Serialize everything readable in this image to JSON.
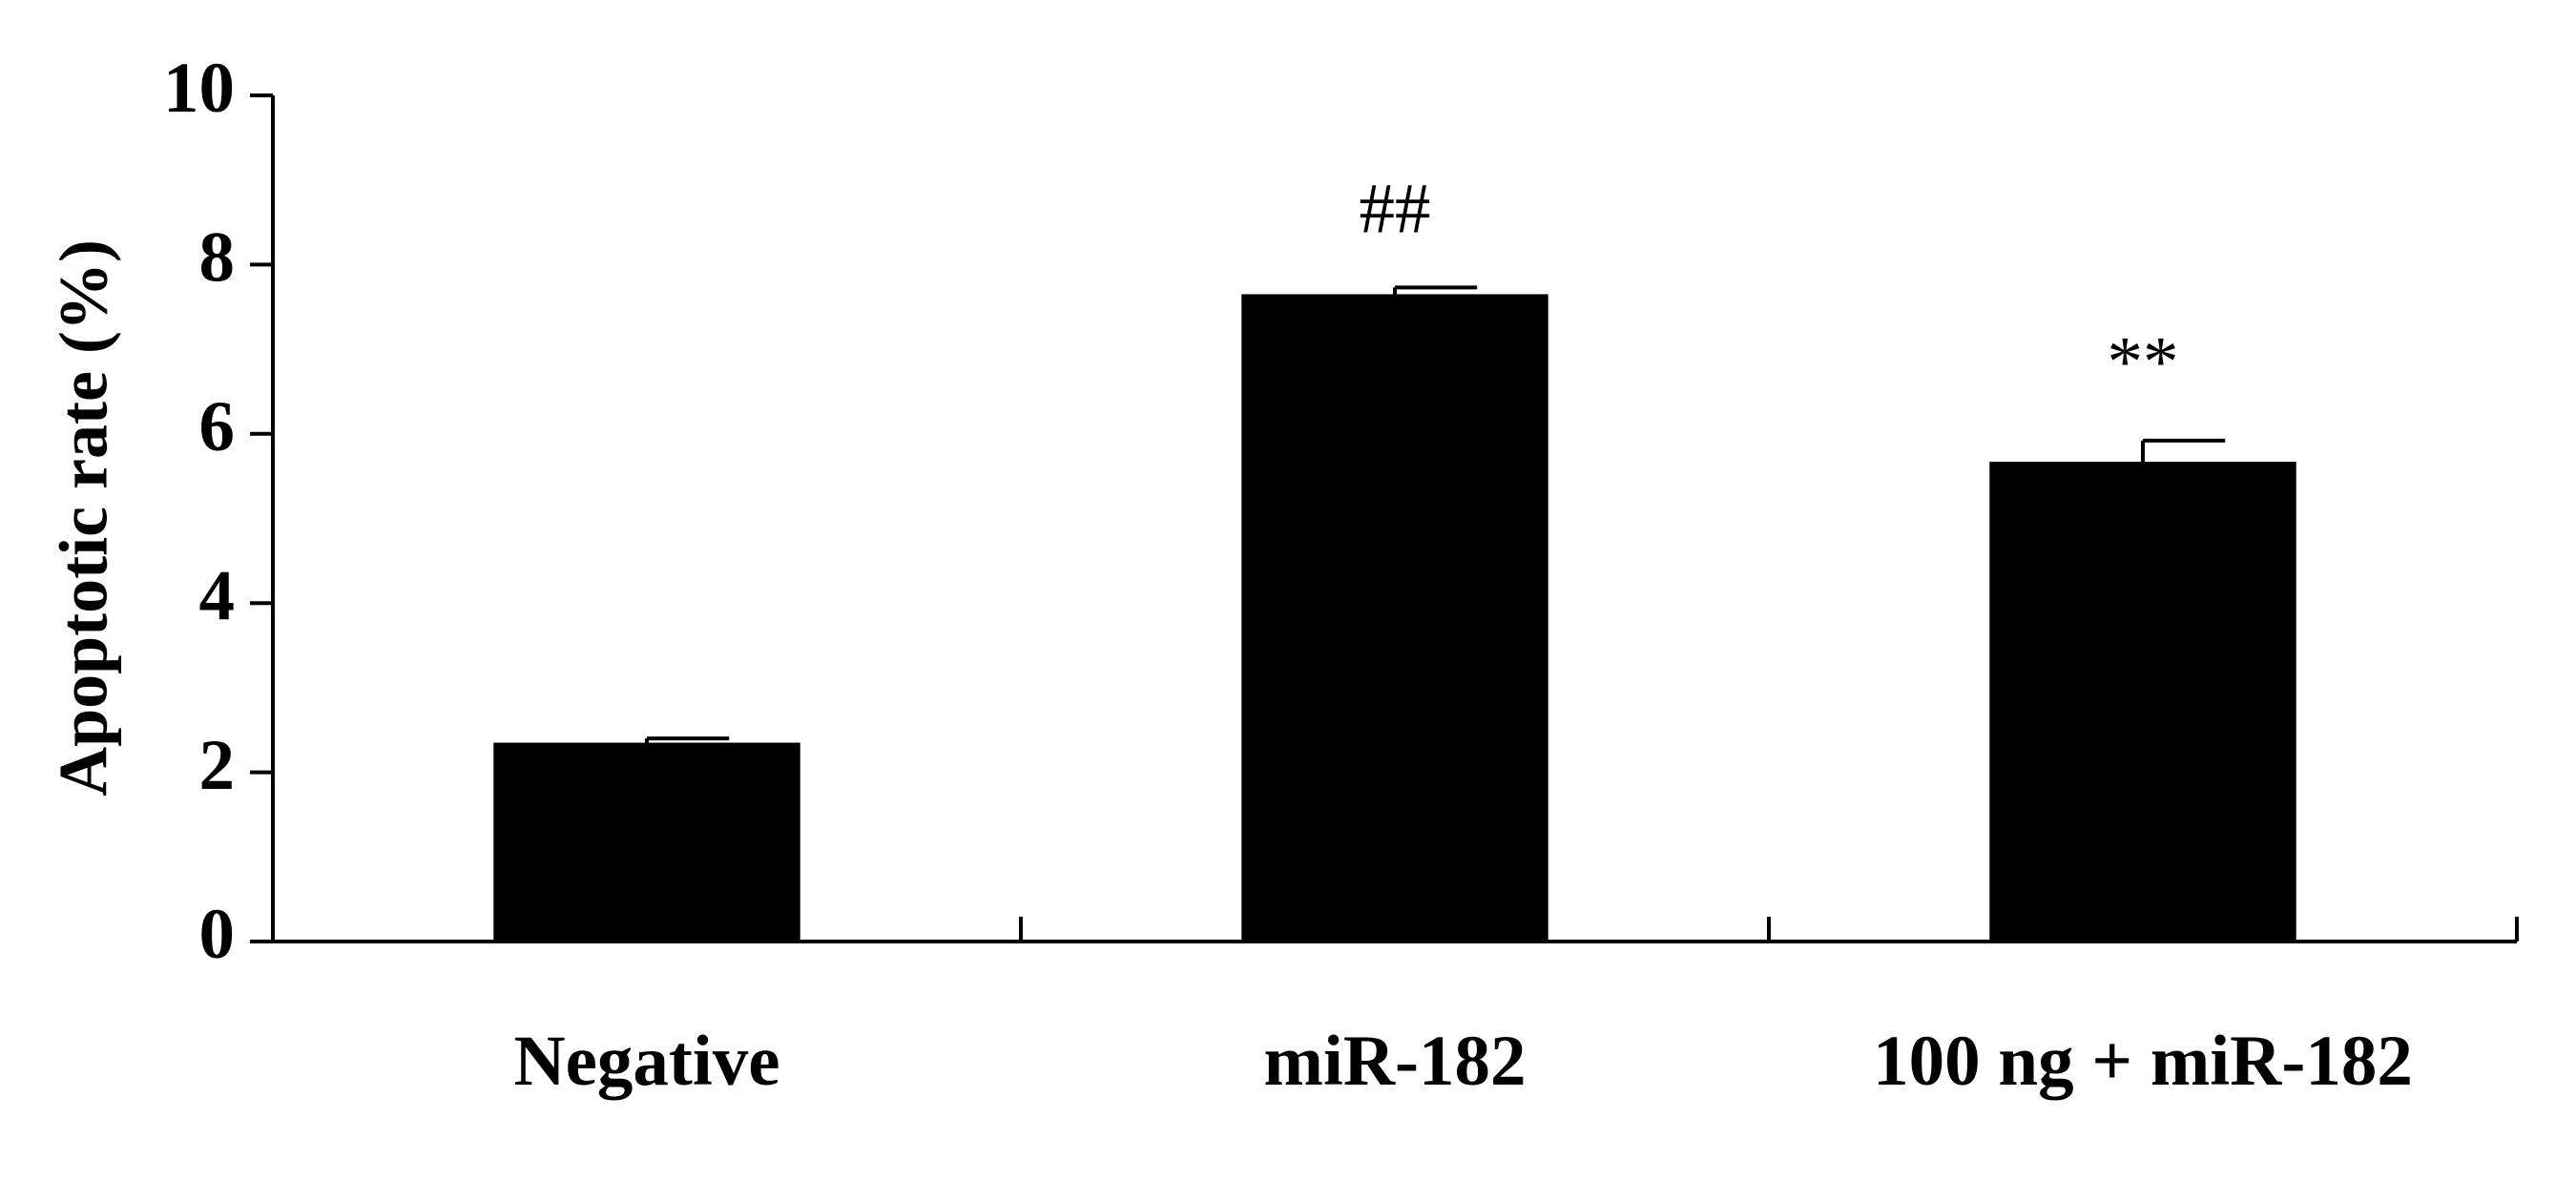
{
  "chart_data": {
    "type": "bar",
    "ylabel": "Apoptotic rate (%)",
    "categories": [
      "Negative",
      "miR-182",
      "100 ng + miR-182"
    ],
    "values": [
      2.35,
      7.65,
      5.67
    ],
    "errors": [
      0.05,
      0.08,
      0.25
    ],
    "annotations": [
      null,
      "##",
      "**"
    ],
    "color": "#000000",
    "ylim": [
      0,
      10
    ],
    "yticks": [
      0,
      2,
      4,
      6,
      8,
      10
    ],
    "grid": false
  }
}
